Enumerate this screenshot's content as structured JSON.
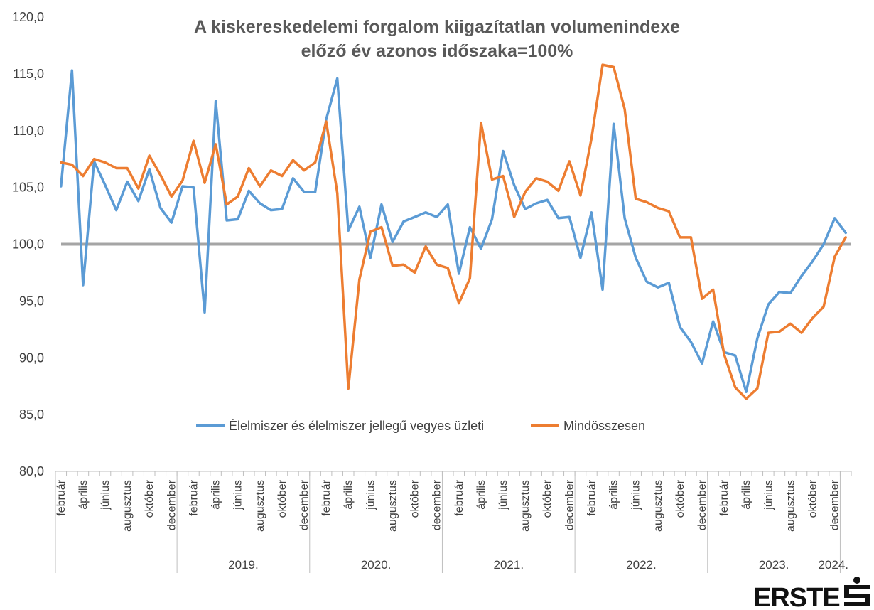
{
  "title_line1": "A kiskereskedelemi forgalom kiigazítatlan volumenindexe",
  "title_line2": "előző év azonos időszaka=100%",
  "logo": "ERSTE",
  "colors": {
    "series1": "#5B9BD5",
    "series2": "#ED7D31",
    "reference": "#A5A5A5",
    "axis": "#BFBFBF"
  },
  "chart_data": {
    "type": "line",
    "ylim": [
      80,
      120
    ],
    "yticks": [
      "80,0",
      "85,0",
      "90,0",
      "95,0",
      "100,0",
      "105,0",
      "110,0",
      "115,0",
      "120,0"
    ],
    "reference_line": 100,
    "month_labels": [
      "február",
      "április",
      "június",
      "augusztus",
      "október",
      "december"
    ],
    "years": [
      {
        "label": "",
        "months": 11
      },
      {
        "label": "2019.",
        "months": 12
      },
      {
        "label": "2020.",
        "months": 12
      },
      {
        "label": "2021.",
        "months": 12
      },
      {
        "label": "2022.",
        "months": 12
      },
      {
        "label": "2023.",
        "months": 12
      },
      {
        "label": "2024.",
        "months": 1
      }
    ],
    "series": [
      {
        "name": "Élelmiszer és élelmiszer jellegű vegyes üzleti",
        "values": [
          105.1,
          115.3,
          96.4,
          107.3,
          105.2,
          103.0,
          105.5,
          103.8,
          106.6,
          103.2,
          101.9,
          105.1,
          105.0,
          94.0,
          112.6,
          102.1,
          102.2,
          104.7,
          103.6,
          103.0,
          103.1,
          105.8,
          104.6,
          104.6,
          111.0,
          114.6,
          101.2,
          103.3,
          98.8,
          103.5,
          100.2,
          102.0,
          102.4,
          102.8,
          102.4,
          103.5,
          97.4,
          101.5,
          99.6,
          102.2,
          108.2,
          105.2,
          103.1,
          103.6,
          103.9,
          102.3,
          102.4,
          98.8,
          102.8,
          96.0,
          110.6,
          102.3,
          98.8,
          96.7,
          96.2,
          96.6,
          92.7,
          91.4,
          89.5,
          93.2,
          90.5,
          90.2,
          87.0,
          91.7,
          94.7,
          95.8,
          95.7,
          97.2,
          98.5,
          100.0,
          102.3,
          101.0
        ]
      },
      {
        "name": "Mindösszesen",
        "values": [
          107.2,
          107.0,
          106.0,
          107.5,
          107.2,
          106.7,
          106.7,
          104.9,
          107.8,
          106.1,
          104.2,
          105.6,
          109.1,
          105.4,
          108.8,
          103.5,
          104.2,
          106.7,
          105.1,
          106.5,
          106.0,
          107.4,
          106.5,
          107.2,
          110.8,
          104.5,
          87.3,
          96.9,
          101.1,
          101.5,
          98.1,
          98.2,
          97.5,
          99.8,
          98.2,
          97.9,
          94.8,
          97.0,
          110.7,
          105.7,
          106.0,
          102.4,
          104.6,
          105.8,
          105.5,
          104.7,
          107.3,
          104.3,
          109.3,
          115.8,
          115.6,
          111.9,
          104.0,
          103.7,
          103.2,
          102.9,
          100.6,
          100.6,
          95.2,
          96.0,
          90.3,
          87.4,
          86.4,
          87.3,
          92.2,
          92.3,
          93.0,
          92.2,
          93.5,
          94.5,
          98.9,
          100.6
        ]
      }
    ]
  }
}
